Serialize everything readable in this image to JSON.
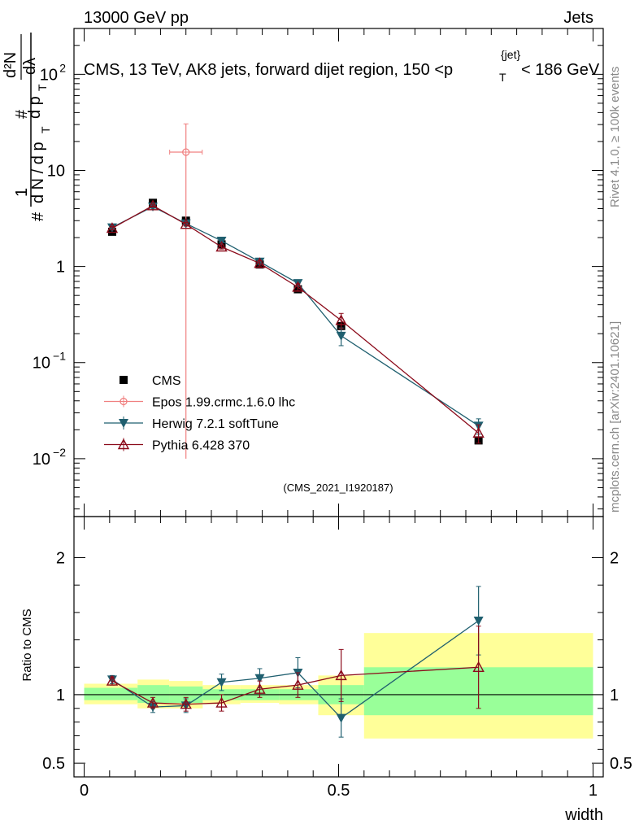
{
  "header": {
    "energy_label": "13000 GeV pp",
    "category_label": "Jets"
  },
  "side": {
    "rivet_label": "Rivet 4.1.0, ≥ 100k events",
    "site_label": "mcplots.cern.ch [arXiv:2401.10621]"
  },
  "colors": {
    "cms": "#000000",
    "epos": "#f08080",
    "herwig": "#1f5f6f",
    "pythia": "#8b0a1a",
    "band_inner": "#99ff99",
    "band_outer": "#ffff99"
  },
  "chart_data": [
    {
      "type": "scatter",
      "title": "CMS, 13 TeV, AK8 jets, forward dijet region, 150 <p_T^{jet}< 186 GeV",
      "title_parts": {
        "main": "CMS, 13 TeV, AK8 jets, forward dijet region, 150 <p",
        "sub": "T",
        "sup": "{jet}",
        "tail": "< 186 GeV"
      },
      "ylabel_parts": {
        "hash": "#",
        "one": "1",
        "frac": "d N / d p",
        "T": "T",
        "num_hash": "#",
        "num_d": "d p",
        "num_T": "T",
        "d2N": "d²N",
        "dlambda": "dλ"
      },
      "yscale": "log",
      "ylim": [
        0.0025,
        300
      ],
      "yticks": [
        {
          "v": 0.01,
          "b": "10",
          "e": "−2"
        },
        {
          "v": 0.1,
          "b": "10",
          "e": "−1"
        },
        {
          "v": 1,
          "b": "1",
          "e": ""
        },
        {
          "v": 10,
          "b": "10",
          "e": ""
        },
        {
          "v": 100,
          "b": "10",
          "e": "2"
        }
      ],
      "xlim": [
        -0.02,
        1.02
      ],
      "analysis_tag": "(CMS_2021_I1920187)",
      "legend": [
        "CMS",
        "Epos 1.99.crmc.1.6.0 lhc",
        "Herwig 7.2.1 softTune",
        "Pythia 6.428 370"
      ],
      "legend_position": "lower-left",
      "series": [
        {
          "name": "CMS",
          "marker": "square",
          "x": [
            0.055,
            0.135,
            0.2,
            0.27,
            0.345,
            0.42,
            0.505,
            0.775
          ],
          "y": [
            2.3,
            4.6,
            3.0,
            1.7,
            1.05,
            0.58,
            0.24,
            0.0155
          ]
        },
        {
          "name": "Epos 1.99.crmc.1.6.0 lhc",
          "marker": "open-circle-cross",
          "x": [
            0.2
          ],
          "y": [
            15.5
          ],
          "yerr_low": [
            15.49
          ],
          "yerr_high": [
            15.0
          ],
          "xerr": [
            0.032
          ]
        },
        {
          "name": "Herwig 7.2.1 softTune",
          "marker": "down-triangle",
          "x": [
            0.055,
            0.135,
            0.2,
            0.27,
            0.345,
            0.42,
            0.505,
            0.775
          ],
          "y": [
            2.55,
            4.2,
            2.8,
            1.85,
            1.12,
            0.67,
            0.19,
            0.022
          ],
          "yerr": [
            0.1,
            0.15,
            0.12,
            0.08,
            0.07,
            0.05,
            0.04,
            0.004
          ]
        },
        {
          "name": "Pythia 6.428 370",
          "marker": "open-up-triangle",
          "x": [
            0.055,
            0.135,
            0.2,
            0.27,
            0.345,
            0.42,
            0.505,
            0.775
          ],
          "y": [
            2.5,
            4.3,
            2.75,
            1.6,
            1.08,
            0.61,
            0.275,
            0.0185
          ],
          "yerr": [
            0.1,
            0.15,
            0.12,
            0.08,
            0.07,
            0.05,
            0.05,
            0.004
          ]
        }
      ]
    },
    {
      "type": "scatter",
      "ylabel": "Ratio to CMS",
      "xlabel": "width",
      "ylim": [
        0.4,
        2.3
      ],
      "yticks": [
        0.5,
        1,
        2
      ],
      "xlim": [
        -0.02,
        1.02
      ],
      "xticks": [
        0,
        0.5,
        1
      ],
      "reference": 1.0,
      "bands": [
        {
          "x0": 0.0,
          "x1": 0.105,
          "inner": [
            0.96,
            1.05
          ],
          "outer": [
            0.93,
            1.08
          ]
        },
        {
          "x0": 0.105,
          "x1": 0.167,
          "inner": [
            0.94,
            1.07
          ],
          "outer": [
            0.9,
            1.11
          ]
        },
        {
          "x0": 0.167,
          "x1": 0.233,
          "inner": [
            0.94,
            1.06
          ],
          "outer": [
            0.9,
            1.1
          ]
        },
        {
          "x0": 0.233,
          "x1": 0.307,
          "inner": [
            0.96,
            1.04
          ],
          "outer": [
            0.93,
            1.07
          ]
        },
        {
          "x0": 0.307,
          "x1": 0.383,
          "inner": [
            0.96,
            1.04
          ],
          "outer": [
            0.94,
            1.07
          ]
        },
        {
          "x0": 0.383,
          "x1": 0.46,
          "inner": [
            0.96,
            1.04
          ],
          "outer": [
            0.93,
            1.07
          ]
        },
        {
          "x0": 0.46,
          "x1": 0.55,
          "inner": [
            0.93,
            1.07
          ],
          "outer": [
            0.85,
            1.14
          ]
        },
        {
          "x0": 0.55,
          "x1": 1.0,
          "inner": [
            0.85,
            1.2
          ],
          "outer": [
            0.68,
            1.45
          ]
        }
      ],
      "series": [
        {
          "name": "Herwig 7.2.1 softTune",
          "x": [
            0.055,
            0.135,
            0.2,
            0.27,
            0.345,
            0.42,
            0.505,
            0.775
          ],
          "y": [
            1.11,
            0.91,
            0.92,
            1.09,
            1.12,
            1.16,
            0.83,
            1.54
          ],
          "yerr": [
            0.03,
            0.04,
            0.05,
            0.06,
            0.07,
            0.11,
            0.14,
            0.25
          ]
        },
        {
          "name": "Pythia 6.428 370",
          "x": [
            0.055,
            0.135,
            0.2,
            0.27,
            0.345,
            0.42,
            0.505,
            0.775
          ],
          "y": [
            1.1,
            0.94,
            0.93,
            0.94,
            1.04,
            1.07,
            1.14,
            1.2
          ],
          "yerr": [
            0.03,
            0.04,
            0.05,
            0.06,
            0.06,
            0.09,
            0.19,
            0.3
          ]
        }
      ]
    }
  ]
}
